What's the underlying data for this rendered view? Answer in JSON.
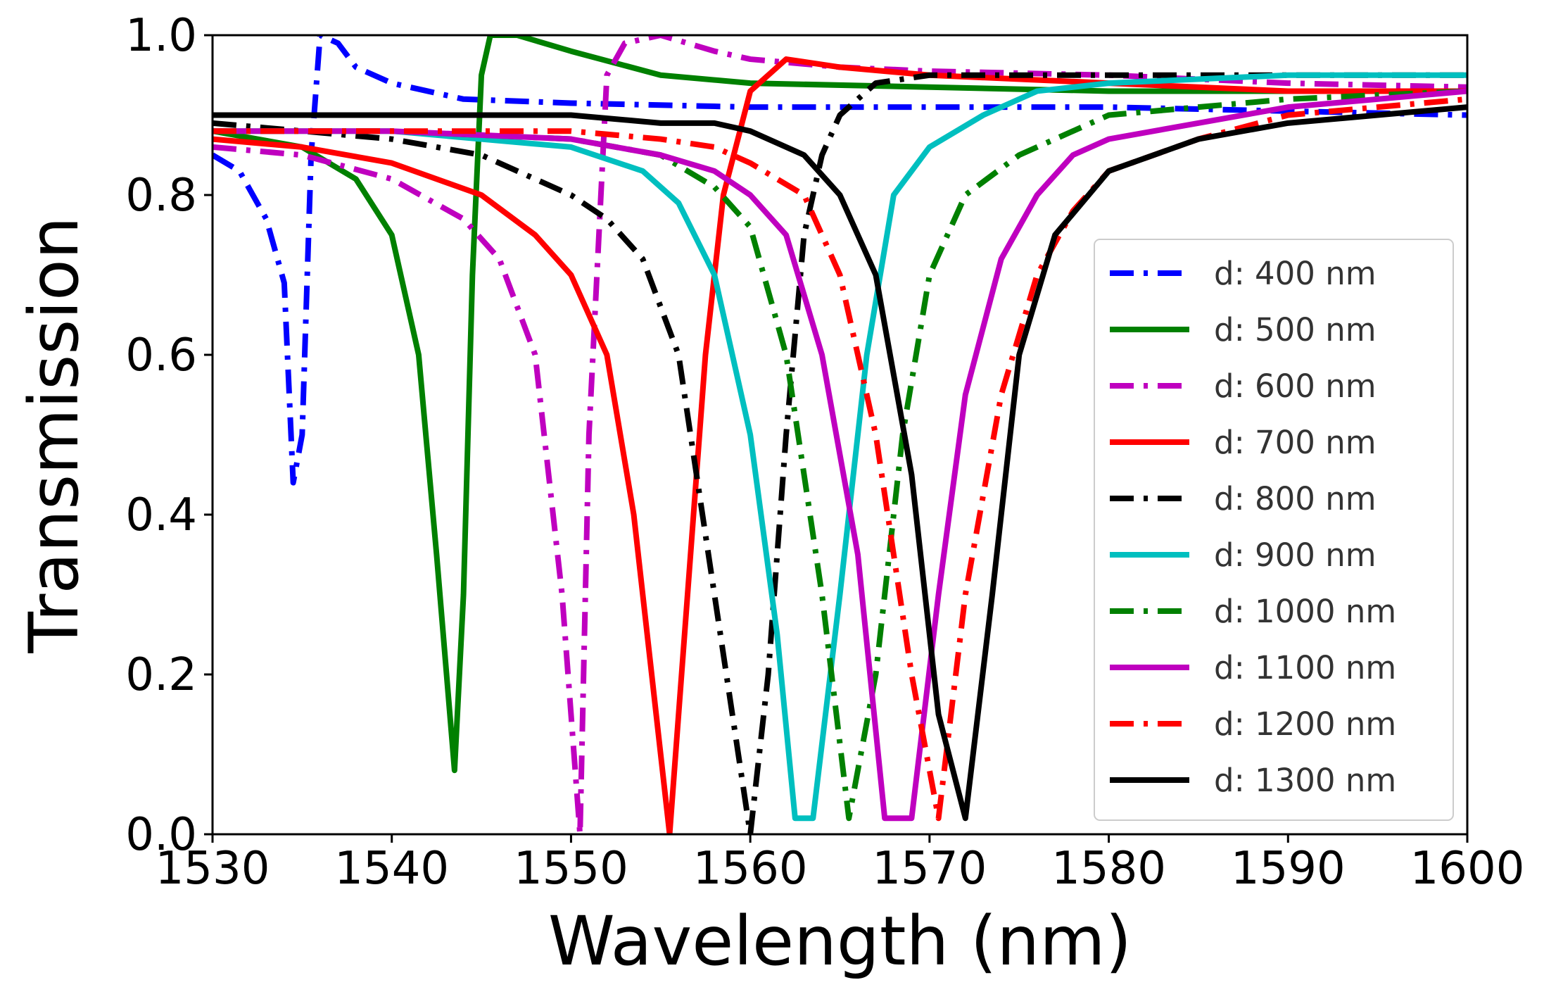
{
  "chart_data": {
    "type": "line",
    "title": "",
    "xlabel": "Wavelength (nm)",
    "ylabel": "Transmission",
    "xlim": [
      1530,
      1600
    ],
    "ylim": [
      0.0,
      1.0
    ],
    "xticks": [
      1530,
      1540,
      1550,
      1560,
      1570,
      1580,
      1590,
      1600
    ],
    "yticks": [
      0.0,
      0.2,
      0.4,
      0.6,
      0.8,
      1.0
    ],
    "xtick_labels": [
      "1530",
      "1540",
      "1550",
      "1560",
      "1570",
      "1580",
      "1590",
      "1600"
    ],
    "ytick_labels": [
      "0.0",
      "0.2",
      "0.4",
      "0.6",
      "0.8",
      "1.0"
    ],
    "grid": false,
    "legend_position": "lower-right",
    "series": [
      {
        "name": "d: 400 nm",
        "color": "#0000ff",
        "style": "dashdot",
        "x": [
          1530,
          1531.5,
          1533,
          1534,
          1534.5,
          1535,
          1535.5,
          1536,
          1537,
          1538,
          1540,
          1542,
          1544,
          1550,
          1560,
          1570,
          1580,
          1590,
          1600
        ],
        "y": [
          0.85,
          0.83,
          0.77,
          0.69,
          0.44,
          0.5,
          0.85,
          1.0,
          0.99,
          0.96,
          0.94,
          0.93,
          0.92,
          0.915,
          0.91,
          0.91,
          0.91,
          0.905,
          0.9
        ]
      },
      {
        "name": "d: 500 nm",
        "color": "#008000",
        "style": "solid",
        "x": [
          1530,
          1535,
          1538,
          1540,
          1541.5,
          1542.5,
          1543.5,
          1544,
          1544.5,
          1545,
          1545.5,
          1547,
          1550,
          1555,
          1560,
          1570,
          1580,
          1590,
          1600
        ],
        "y": [
          0.88,
          0.86,
          0.82,
          0.75,
          0.6,
          0.35,
          0.08,
          0.3,
          0.7,
          0.95,
          1.0,
          1.0,
          0.98,
          0.95,
          0.94,
          0.935,
          0.93,
          0.93,
          0.93
        ]
      },
      {
        "name": "d: 600 nm",
        "color": "#bf00bf",
        "style": "dashdot",
        "x": [
          1530,
          1535,
          1540,
          1544,
          1546,
          1548,
          1549.5,
          1550.5,
          1551,
          1552,
          1553,
          1555,
          1558,
          1560,
          1565,
          1570,
          1580,
          1590,
          1600
        ],
        "y": [
          0.86,
          0.85,
          0.82,
          0.77,
          0.72,
          0.6,
          0.3,
          0.0,
          0.5,
          0.95,
          0.99,
          1.0,
          0.98,
          0.97,
          0.96,
          0.955,
          0.95,
          0.94,
          0.935
        ]
      },
      {
        "name": "d: 700 nm",
        "color": "#ff0000",
        "style": "solid",
        "x": [
          1530,
          1535,
          1540,
          1545,
          1548,
          1550,
          1552,
          1553.5,
          1555.5,
          1556.5,
          1557.5,
          1558.5,
          1560,
          1562,
          1565,
          1570,
          1580,
          1590,
          1600
        ],
        "y": [
          0.87,
          0.86,
          0.84,
          0.8,
          0.75,
          0.7,
          0.6,
          0.4,
          0.0,
          0.3,
          0.6,
          0.8,
          0.93,
          0.97,
          0.96,
          0.95,
          0.94,
          0.93,
          0.93
        ]
      },
      {
        "name": "d: 800 nm",
        "color": "#000000",
        "style": "dashdot",
        "x": [
          1530,
          1540,
          1545,
          1550,
          1552,
          1554,
          1556,
          1558,
          1560,
          1561,
          1562,
          1563,
          1564,
          1565,
          1567,
          1570,
          1580,
          1590,
          1600
        ],
        "y": [
          0.89,
          0.87,
          0.85,
          0.8,
          0.77,
          0.72,
          0.6,
          0.3,
          0.0,
          0.2,
          0.5,
          0.75,
          0.85,
          0.9,
          0.94,
          0.95,
          0.95,
          0.95,
          0.95
        ]
      },
      {
        "name": "d: 900 nm",
        "color": "#00bfbf",
        "style": "solid",
        "x": [
          1530,
          1540,
          1550,
          1554,
          1556,
          1558,
          1560,
          1561.5,
          1562.5,
          1563.5,
          1565,
          1566.5,
          1568,
          1570,
          1573,
          1576,
          1580,
          1590,
          1600
        ],
        "y": [
          0.88,
          0.88,
          0.86,
          0.83,
          0.79,
          0.7,
          0.5,
          0.25,
          0.02,
          0.02,
          0.3,
          0.6,
          0.8,
          0.86,
          0.9,
          0.93,
          0.94,
          0.95,
          0.95
        ]
      },
      {
        "name": "d: 1000 nm",
        "color": "#008000",
        "style": "dashdot",
        "x": [
          1530,
          1540,
          1550,
          1555,
          1558,
          1560,
          1562,
          1564,
          1565.5,
          1567,
          1568.5,
          1570,
          1572,
          1575,
          1578,
          1580,
          1585,
          1590,
          1600
        ],
        "y": [
          0.88,
          0.88,
          0.87,
          0.85,
          0.81,
          0.76,
          0.6,
          0.3,
          0.02,
          0.2,
          0.5,
          0.7,
          0.8,
          0.85,
          0.88,
          0.9,
          0.91,
          0.92,
          0.93
        ]
      },
      {
        "name": "d: 1100 nm",
        "color": "#bf00bf",
        "style": "solid",
        "x": [
          1530,
          1540,
          1550,
          1555,
          1558,
          1560,
          1562,
          1564,
          1566,
          1567.5,
          1569,
          1570.5,
          1572,
          1574,
          1576,
          1578,
          1580,
          1590,
          1600
        ],
        "y": [
          0.88,
          0.88,
          0.87,
          0.85,
          0.83,
          0.8,
          0.75,
          0.6,
          0.35,
          0.02,
          0.02,
          0.3,
          0.55,
          0.72,
          0.8,
          0.85,
          0.87,
          0.91,
          0.93
        ]
      },
      {
        "name": "d: 1200 nm",
        "color": "#ff0000",
        "style": "dashdot",
        "x": [
          1530,
          1540,
          1550,
          1555,
          1558,
          1560,
          1563,
          1565,
          1567,
          1569,
          1570.5,
          1572,
          1574,
          1576,
          1578,
          1580,
          1585,
          1590,
          1600
        ],
        "y": [
          0.88,
          0.88,
          0.88,
          0.87,
          0.86,
          0.84,
          0.8,
          0.7,
          0.5,
          0.2,
          0.02,
          0.3,
          0.55,
          0.7,
          0.78,
          0.83,
          0.87,
          0.9,
          0.92
        ]
      },
      {
        "name": "d: 1300 nm",
        "color": "#000000",
        "style": "solid",
        "x": [
          1530,
          1540,
          1550,
          1555,
          1558,
          1560,
          1563,
          1565,
          1567,
          1569,
          1570.5,
          1572,
          1573.5,
          1575,
          1577,
          1580,
          1585,
          1590,
          1600
        ],
        "y": [
          0.9,
          0.9,
          0.9,
          0.89,
          0.89,
          0.88,
          0.85,
          0.8,
          0.7,
          0.45,
          0.15,
          0.02,
          0.3,
          0.6,
          0.75,
          0.83,
          0.87,
          0.89,
          0.91
        ]
      }
    ]
  }
}
